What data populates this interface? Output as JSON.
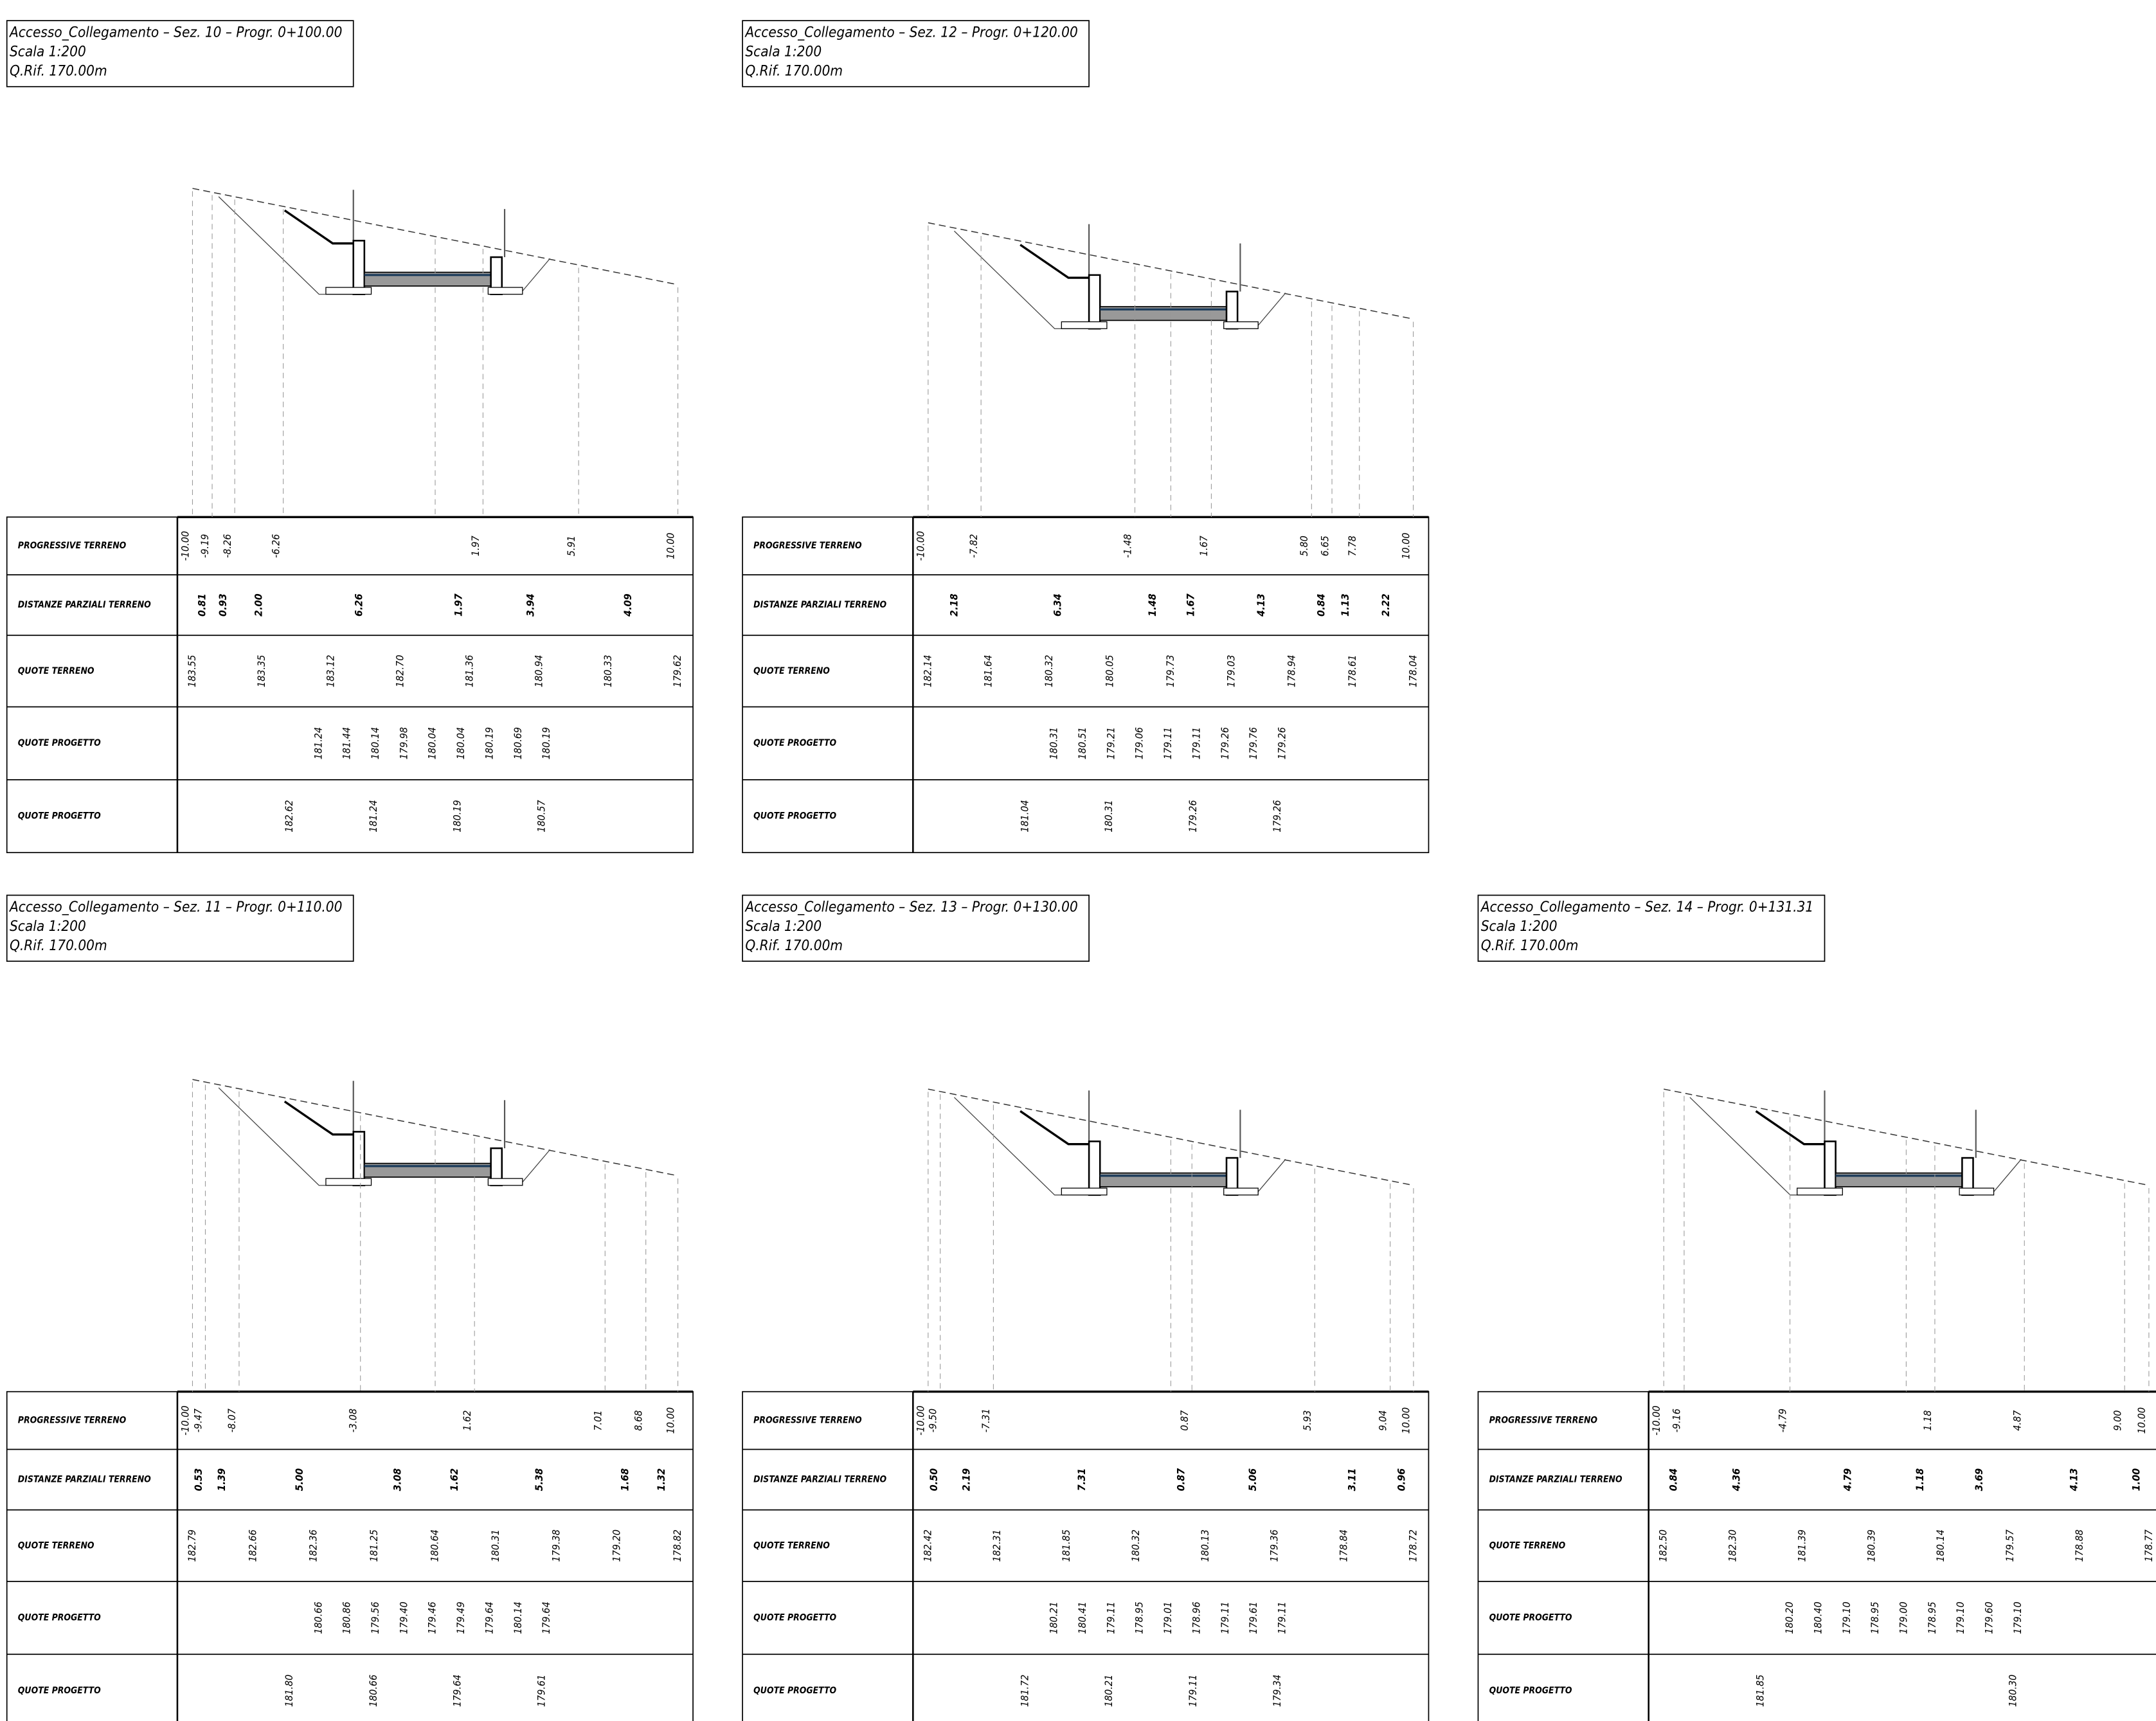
{
  "sections": [
    {
      "title": "Accesso_Collegamento – Sez. 10 – Progr. 0+100.00",
      "scale": "Scala 1:200",
      "qrif": "Q.Rif. 170.00m",
      "rows": [
        {
          "label": "PROGRESSIVE TERRENO",
          "values": [
            "-10.00",
            "-9.19",
            "-8.26",
            "-6.26",
            "1.97",
            "5.91",
            "10.00"
          ]
        },
        {
          "label": "DISTANZE PARZIALI TERRENO",
          "values": [
            "0.81",
            "0.93",
            "2.00",
            "6.26",
            "1.97",
            "3.94",
            "4.09"
          ]
        },
        {
          "label": "QUOTE TERRENO",
          "values": [
            "183.55",
            "183.35",
            "183.12",
            "182.70",
            "181.36",
            "180.94",
            "180.33",
            "179.62"
          ]
        },
        {
          "label": "QUOTE PROGETTO",
          "values": [
            "181.24",
            "181.44",
            "180.14",
            "179.98",
            "180.04",
            "180.04",
            "180.19",
            "180.69",
            "180.19"
          ]
        },
        {
          "label": "QUOTE PROGETTO",
          "values": [
            "182.62",
            "181.24",
            "180.19",
            "180.57"
          ]
        }
      ]
    },
    {
      "title": "Accesso_Collegamento – Sez. 12 – Progr. 0+120.00",
      "scale": "Scala 1:200",
      "qrif": "Q.Rif. 170.00m",
      "rows": [
        {
          "label": "PROGRESSIVE TERRENO",
          "values": [
            "-10.00",
            "-7.82",
            "-1.48",
            "1.67",
            "5.80",
            "6.65",
            "7.78",
            "10.00"
          ]
        },
        {
          "label": "DISTANZE PARZIALI TERRENO",
          "values": [
            "2.18",
            "6.34",
            "1.48",
            "1.67",
            "4.13",
            "0.84",
            "1.13",
            "2.22"
          ]
        },
        {
          "label": "QUOTE TERRENO",
          "values": [
            "182.14",
            "181.64",
            "180.32",
            "180.05",
            "179.73",
            "179.03",
            "178.94",
            "178.61",
            "178.04"
          ]
        },
        {
          "label": "QUOTE PROGETTO",
          "values": [
            "180.31",
            "180.51",
            "179.21",
            "179.06",
            "179.11",
            "179.11",
            "179.26",
            "179.76",
            "179.26"
          ]
        },
        {
          "label": "QUOTE PROGETTO",
          "values": [
            "181.04",
            "180.31",
            "179.26",
            "179.26"
          ]
        }
      ]
    },
    {
      "title": "Accesso_Collegamento – Sez. 11 – Progr. 0+110.00",
      "scale": "Scala 1:200",
      "qrif": "Q.Rif. 170.00m",
      "rows": [
        {
          "label": "PROGRESSIVE TERRENO",
          "values": [
            "-10.00",
            "-9.47",
            "-8.07",
            "-3.08",
            "1.62",
            "7.01",
            "8.68",
            "10.00"
          ]
        },
        {
          "label": "DISTANZE PARZIALI TERRENO",
          "values": [
            "0.53",
            "1.39",
            "5.00",
            "3.08",
            "1.62",
            "5.38",
            "1.68",
            "1.32"
          ]
        },
        {
          "label": "QUOTE TERRENO",
          "values": [
            "182.79",
            "182.66",
            "182.36",
            "181.25",
            "180.64",
            "180.31",
            "179.38",
            "179.20",
            "178.82"
          ]
        },
        {
          "label": "QUOTE PROGETTO",
          "values": [
            "180.66",
            "180.86",
            "179.56",
            "179.40",
            "179.46",
            "179.49",
            "179.64",
            "180.14",
            "179.64"
          ]
        },
        {
          "label": "QUOTE PROGETTO",
          "values": [
            "181.80",
            "180.66",
            "179.64",
            "179.61"
          ]
        }
      ]
    },
    {
      "title": "Accesso_Collegamento – Sez. 13 – Progr. 0+130.00",
      "scale": "Scala 1:200",
      "qrif": "Q.Rif. 170.00m",
      "rows": [
        {
          "label": "PROGRESSIVE TERRENO",
          "values": [
            "-10.00",
            "-9.50",
            "-7.31",
            "0.87",
            "5.93",
            "9.04",
            "10.00"
          ]
        },
        {
          "label": "DISTANZE PARZIALI TERRENO",
          "values": [
            "0.50",
            "2.19",
            "7.31",
            "0.87",
            "5.06",
            "3.11",
            "0.96"
          ]
        },
        {
          "label": "QUOTE TERRENO",
          "values": [
            "182.42",
            "182.31",
            "181.85",
            "180.32",
            "180.13",
            "179.36",
            "178.84",
            "178.72"
          ]
        },
        {
          "label": "QUOTE PROGETTO",
          "values": [
            "180.21",
            "180.41",
            "179.11",
            "178.95",
            "179.01",
            "178.96",
            "179.11",
            "179.61",
            "179.11"
          ]
        },
        {
          "label": "QUOTE PROGETTO",
          "values": [
            "181.72",
            "180.21",
            "179.11",
            "179.34"
          ]
        }
      ]
    },
    {
      "title": "Accesso_Collegamento – Sez. 14 – Progr. 0+131.31",
      "scale": "Scala 1:200",
      "qrif": "Q.Rif. 170.00m",
      "rows": [
        {
          "label": "PROGRESSIVE TERRENO",
          "values": [
            "-10.00",
            "-9.16",
            "-4.79",
            "1.18",
            "4.87",
            "9.00",
            "10.00"
          ]
        },
        {
          "label": "DISTANZE PARZIALI TERRENO",
          "values": [
            "0.84",
            "4.36",
            "4.79",
            "1.18",
            "3.69",
            "4.13",
            "1.00"
          ]
        },
        {
          "label": "QUOTE TERRENO",
          "values": [
            "182.50",
            "182.30",
            "181.39",
            "180.39",
            "180.14",
            "179.57",
            "178.88",
            "178.77"
          ]
        },
        {
          "label": "QUOTE PROGETTO",
          "values": [
            "180.20",
            "180.40",
            "179.10",
            "178.95",
            "179.00",
            "178.95",
            "179.10",
            "179.60",
            "179.10"
          ]
        },
        {
          "label": "QUOTE PROGETTO",
          "values": [
            "181.85",
            "180.30"
          ]
        }
      ]
    }
  ]
}
